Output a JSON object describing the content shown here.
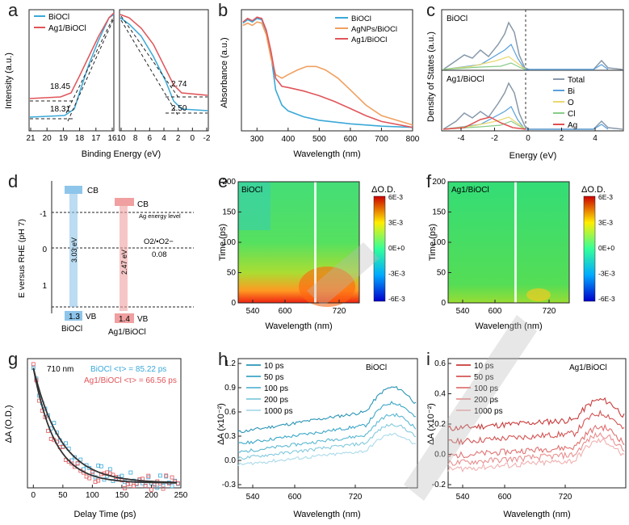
{
  "panels": {
    "a": {
      "letter": "a",
      "xlabel": "Binding Energy (eV)",
      "ylabel": "Intensity (a.u.)",
      "legend": [
        "BiOCl",
        "Ag<sub>1</sub>/BiOCl"
      ],
      "legend_text": [
        "BiOCl",
        "Ag1/BiOCl"
      ],
      "left_ticks": [
        "21",
        "20",
        "19",
        "18",
        "17",
        "16"
      ],
      "right_ticks": [
        "10",
        "8",
        "6",
        "4",
        "2",
        "0",
        "-2"
      ],
      "annot": {
        "upper_left": "18.45",
        "lower_left": "18.31",
        "upper_right": "2.74",
        "lower_right": "2.50"
      }
    },
    "b": {
      "letter": "b",
      "xlabel": "Wavelength (nm)",
      "ylabel": "Absorbance (a.u.)",
      "legend_text": [
        "BiOCl",
        "AgNPs/BiOCl",
        "Ag1/BiOCl"
      ],
      "xticks": [
        "300",
        "400",
        "500",
        "600",
        "700",
        "800"
      ]
    },
    "c": {
      "letter": "c",
      "xlabel": "Energy (eV)",
      "ylabel": "Density of States (a.u.)",
      "top_label": "BiOCl",
      "bottom_label": "Ag1/BiOCl",
      "legend_text": [
        "Total",
        "Bi",
        "O",
        "Cl",
        "Ag"
      ],
      "xticks": [
        "-4",
        "-2",
        "0",
        "2",
        "4"
      ]
    },
    "d": {
      "letter": "d",
      "ylabel": "E versus RHE (pH 7)",
      "yticks": [
        "-1",
        "0",
        "1"
      ],
      "cb": "CB",
      "vb": "VB",
      "cb2": "CB",
      "vb2": "VB",
      "gap1": "3.03 eV",
      "gap2": "2.47 eV",
      "vb1_val": "1.3",
      "vb2_val": "1.4",
      "name1": "BiOCl",
      "name2": "Ag1/BiOCl",
      "ag_level": "Ag energy level",
      "o2": "O2/•O2−",
      "o2_val": "0.08"
    },
    "e": {
      "letter": "e",
      "tag": "BiOCl",
      "xlabel": "Wavelength (nm)",
      "ylabel": "Time (ps)",
      "xticks": [
        "540",
        "600",
        "720"
      ],
      "yticks": [
        "0",
        "50",
        "100",
        "150",
        "200"
      ],
      "cbar_title": "ΔO.D.",
      "cbar_ticks": [
        "6E-3",
        "3E-3",
        "0E+0",
        "-3E-3",
        "-6E-3"
      ]
    },
    "f": {
      "letter": "f",
      "tag": "Ag1/BiOCl",
      "xlabel": "Wavelength (nm)",
      "ylabel": "Time (ps)",
      "xticks": [
        "540",
        "600",
        "720"
      ],
      "yticks": [
        "0",
        "50",
        "100",
        "150",
        "200"
      ],
      "cbar_title": "ΔO.D.",
      "cbar_ticks": [
        "6E-3",
        "3E-3",
        "0E+0",
        "-3E-3",
        "-6E-3"
      ]
    },
    "g": {
      "letter": "g",
      "xlabel": "Delay Time (ps)",
      "ylabel": "ΔA (O.D.)",
      "wave": "710 nm",
      "legend_text": [
        "BiOCl <τ> = 85.22 ps",
        "Ag1/BiOCl <τ> = 66.56 ps"
      ],
      "xticks": [
        "0",
        "50",
        "100",
        "150",
        "200",
        "250"
      ]
    },
    "h": {
      "letter": "h",
      "tag": "BiOCl",
      "xlabel": "Wavelength (nm)",
      "ylabel": "ΔA (x10⁻²)",
      "legend_text": [
        "10 ps",
        "50 ps",
        "100 ps",
        "200 ps",
        "1000 ps"
      ],
      "xticks": [
        "540",
        "600",
        "720"
      ],
      "yticks": [
        "1.2",
        "0.9",
        "0.6",
        "0.3",
        "0.0",
        "-0.3"
      ]
    },
    "i": {
      "letter": "i",
      "tag": "Ag1/BiOCl",
      "xlabel": "Wavelength (nm)",
      "ylabel": "ΔA (x10⁻²)",
      "legend_text": [
        "10 ps",
        "50 ps",
        "100 ps",
        "200 ps",
        "1000 ps"
      ],
      "xticks": [
        "540",
        "600",
        "720"
      ],
      "yticks": [
        "0.6",
        "0.4",
        "0.2",
        "0.0",
        "-0.2"
      ]
    }
  },
  "colors": {
    "bioc": "#3aa8d8",
    "agbioc": "#e0555a",
    "agnp": "#f0a060",
    "total": "#8899aa",
    "bi": "#5aa0dc",
    "o": "#e8d870",
    "cl": "#88cc88",
    "ag": "#e05050",
    "cb1": "#8ec5ea",
    "cb2": "#f0a0a0"
  },
  "chart_data": [
    {
      "type": "line",
      "id": "b",
      "title": "",
      "xlabel": "Wavelength (nm)",
      "ylabel": "Absorbance (a.u.)",
      "xlim": [
        250,
        800
      ],
      "series": [
        {
          "name": "BiOCl",
          "x": [
            255,
            270,
            285,
            300,
            315,
            330,
            345,
            360,
            380,
            400,
            450,
            500,
            600,
            700,
            800
          ],
          "y": [
            0.92,
            0.95,
            0.93,
            0.96,
            0.95,
            0.85,
            0.65,
            0.35,
            0.22,
            0.17,
            0.12,
            0.09,
            0.06,
            0.04,
            0.03
          ]
        },
        {
          "name": "AgNPs/BiOCl",
          "x": [
            255,
            270,
            285,
            300,
            315,
            330,
            345,
            360,
            380,
            400,
            430,
            460,
            490,
            520,
            560,
            600,
            650,
            700,
            800
          ],
          "y": [
            0.9,
            0.92,
            0.9,
            0.93,
            0.92,
            0.82,
            0.62,
            0.48,
            0.45,
            0.48,
            0.52,
            0.55,
            0.55,
            0.52,
            0.45,
            0.35,
            0.22,
            0.13,
            0.05
          ]
        },
        {
          "name": "Ag1/BiOCl",
          "x": [
            255,
            270,
            285,
            300,
            315,
            330,
            345,
            360,
            380,
            400,
            450,
            500,
            550,
            600,
            650,
            700,
            800
          ],
          "y": [
            0.93,
            0.96,
            0.94,
            0.97,
            0.96,
            0.86,
            0.68,
            0.45,
            0.38,
            0.37,
            0.34,
            0.3,
            0.25,
            0.19,
            0.13,
            0.08,
            0.03
          ]
        }
      ]
    },
    {
      "type": "scatter",
      "id": "g",
      "xlabel": "Delay Time (ps)",
      "ylabel": "ΔA (O.D.)",
      "xlim": [
        -10,
        250
      ],
      "series": [
        {
          "name": "BiOCl",
          "tau_ps": 85.22
        },
        {
          "name": "Ag1/BiOCl",
          "tau_ps": 66.56
        }
      ]
    },
    {
      "type": "line",
      "id": "h",
      "xlabel": "Wavelength (nm)",
      "ylabel": "ΔA (x10⁻²)",
      "ylim": [
        -0.3,
        1.2
      ],
      "series": [
        {
          "name": "10 ps",
          "offset": 0.35
        },
        {
          "name": "50 ps",
          "offset": 0.22
        },
        {
          "name": "100 ps",
          "offset": 0.12
        },
        {
          "name": "200 ps",
          "offset": 0.03
        },
        {
          "name": "1000 ps",
          "offset": -0.08
        }
      ]
    },
    {
      "type": "line",
      "id": "i",
      "xlabel": "Wavelength (nm)",
      "ylabel": "ΔA (x10⁻²)",
      "ylim": [
        -0.2,
        0.6
      ],
      "series": [
        {
          "name": "10 ps",
          "offset": 0.17
        },
        {
          "name": "50 ps",
          "offset": 0.08
        },
        {
          "name": "100 ps",
          "offset": -0.01
        },
        {
          "name": "200 ps",
          "offset": -0.06
        },
        {
          "name": "1000 ps",
          "offset": -0.1
        }
      ]
    }
  ]
}
